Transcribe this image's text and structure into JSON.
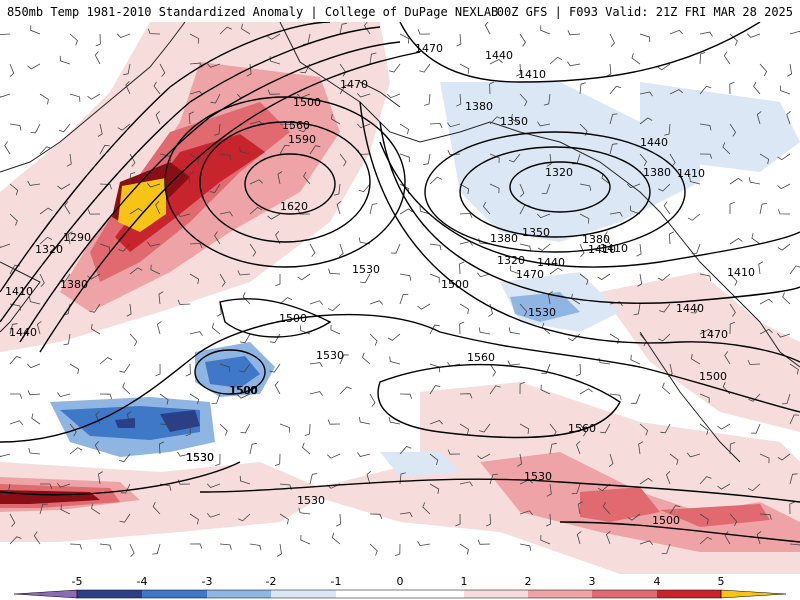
{
  "header": {
    "title_left": "850mb Temp 1981-2010 Standardized Anomaly | College of DuPage NEXLAB",
    "title_right": "00Z GFS | F093 Valid: 21Z FRI MAR 28 2025"
  },
  "map": {
    "contour_labels": [
      "1470",
      "1440",
      "1410",
      "1380",
      "1350",
      "1320",
      "1500",
      "1560",
      "1590",
      "1620",
      "1290",
      "1320",
      "1380",
      "1410",
      "1440",
      "1530",
      "1500",
      "1530",
      "1500",
      "1560",
      "1560",
      "1530",
      "1530",
      "1530",
      "1530",
      "1500",
      "1470",
      "1500",
      "1440",
      "1410",
      "1380",
      "1350",
      "1320",
      "1380",
      "1410",
      "1440",
      "1470",
      "1410",
      "1500",
      "1440",
      "1380",
      "1410",
      "1470",
      "1500",
      "1530"
    ],
    "colors": {
      "neg_5": "#8b6bb5",
      "neg_4": "#2b3f86",
      "neg_3": "#3f78c7",
      "neg_2": "#8fb5e3",
      "neg_1": "#dbe7f5",
      "pos_1": "#f7dcdc",
      "pos_2": "#eea4a6",
      "pos_3": "#e06a70",
      "pos_4": "#c8242e",
      "pos_5": "#8a0e16",
      "extreme": "#f7c416"
    }
  },
  "colorbar": {
    "ticks": [
      "-5",
      "-4",
      "-3",
      "-2",
      "-1",
      "0",
      "1",
      "2",
      "3",
      "4",
      "5"
    ]
  }
}
